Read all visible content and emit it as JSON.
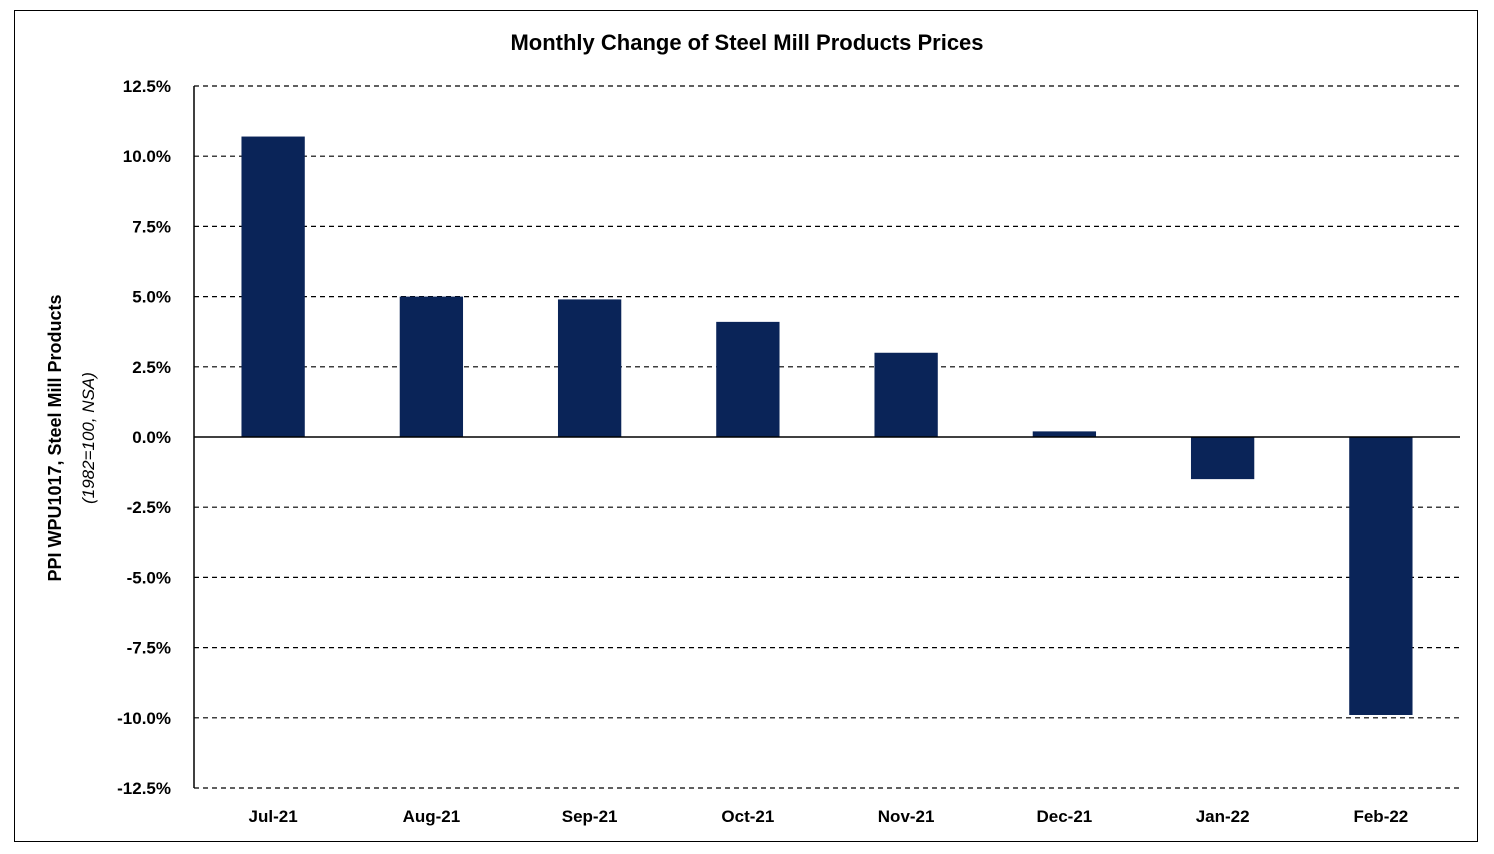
{
  "chart_data": {
    "type": "bar",
    "title": "Monthly Change of Steel Mill Products Prices",
    "ylabel": "PPI WPU1017, Steel Mill Products",
    "ylabel_sub": "(1982=100, NSA)",
    "xlabel": "",
    "categories": [
      "Jul-21",
      "Aug-21",
      "Sep-21",
      "Oct-21",
      "Nov-21",
      "Dec-21",
      "Jan-22",
      "Feb-22"
    ],
    "values": [
      10.7,
      5.0,
      4.9,
      4.1,
      3.0,
      0.2,
      -1.5,
      -9.9
    ],
    "ylim": [
      -12.5,
      12.5
    ],
    "yticks": [
      12.5,
      10.0,
      7.5,
      5.0,
      2.5,
      0.0,
      -2.5,
      -5.0,
      -7.5,
      -10.0,
      -12.5
    ],
    "ytick_labels": [
      "12.5%",
      "10.0%",
      "7.5%",
      "5.0%",
      "2.5%",
      "0.0%",
      "-2.5%",
      "-5.0%",
      "-7.5%",
      "-10.0%",
      "-12.5%"
    ],
    "grid": "horizontal dashed",
    "legend": "none",
    "bar_color": "#0A2458"
  }
}
